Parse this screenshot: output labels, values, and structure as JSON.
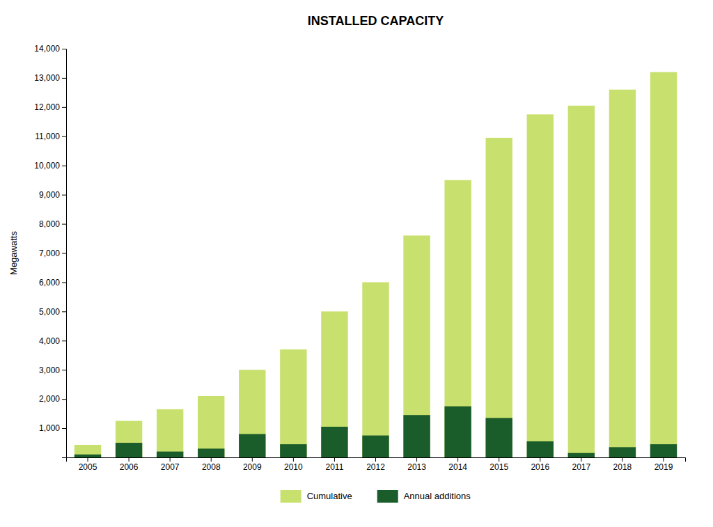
{
  "chart_data": {
    "type": "bar",
    "title": "INSTALLED CAPACITY",
    "ylabel": "Megawatts",
    "categories": [
      "2005",
      "2006",
      "2007",
      "2008",
      "2009",
      "2010",
      "2011",
      "2012",
      "2013",
      "2014",
      "2015",
      "2016",
      "2017",
      "2018",
      "2019"
    ],
    "series": [
      {
        "name": "Cumulative",
        "color": "#c8e06e",
        "values": [
          430,
          1250,
          1650,
          2100,
          3000,
          3700,
          5000,
          6000,
          7600,
          9500,
          10950,
          11750,
          12050,
          12600,
          13200
        ]
      },
      {
        "name": "Annual additions",
        "color": "#1a5c2a",
        "values": [
          100,
          500,
          200,
          300,
          800,
          450,
          1050,
          750,
          1450,
          1750,
          1350,
          550,
          150,
          350,
          450
        ]
      }
    ],
    "ylim": [
      0,
      14000
    ],
    "yticks": [
      {
        "value": 1000,
        "label": "1,000"
      },
      {
        "value": 2000,
        "label": "2,000"
      },
      {
        "value": 3000,
        "label": "3,000"
      },
      {
        "value": 4000,
        "label": "4,000"
      },
      {
        "value": 5000,
        "label": "5,000"
      },
      {
        "value": 6000,
        "label": "6,000"
      },
      {
        "value": 7000,
        "label": "7,000"
      },
      {
        "value": 8000,
        "label": "8,000"
      },
      {
        "value": 9000,
        "label": "9,000"
      },
      {
        "value": 10000,
        "label": "10,000"
      },
      {
        "value": 11000,
        "label": "11,000"
      },
      {
        "value": 12000,
        "label": "12,000"
      },
      {
        "value": 13000,
        "label": "13,000"
      },
      {
        "value": 14000,
        "label": "14,000"
      }
    ],
    "grid": false,
    "legend": "bottom"
  }
}
